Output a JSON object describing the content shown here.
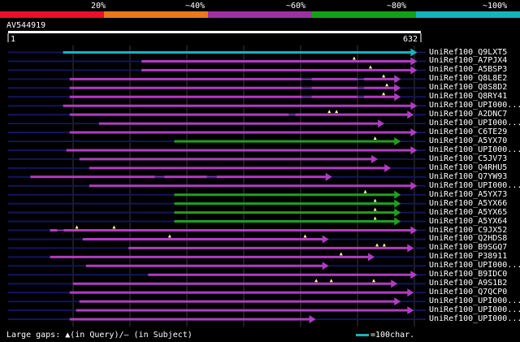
{
  "colors": {
    "scale": [
      "#e8102a",
      "#e8791d",
      "#a02fa4",
      "#13a013",
      "#17b3bc"
    ],
    "bar_pink": "#b03cc4",
    "bar_green": "#1fa01f",
    "bar_cyan": "#17b3bc",
    "backbone": "#14145c",
    "grid": "#3a3a3a",
    "marker": "#ffff99",
    "query_bar": "#ffffff"
  },
  "scale": {
    "labels": [
      "20%",
      "~40%",
      "~60%",
      "~80%",
      "~100%"
    ]
  },
  "query": {
    "id": "AV544919",
    "start_label": "1",
    "end_label": "632",
    "length": 632
  },
  "footer": {
    "legend_text": "Large gaps: ▲(in Query)/— (in Subject)",
    "scale_text": "=100char."
  },
  "hits": [
    {
      "label": "UniRef100_Q9LXT5",
      "start": 85,
      "end": 625,
      "color": "cyan",
      "markers": [],
      "gaps": []
    },
    {
      "label": "UniRef100_A7PJX4",
      "start": 205,
      "end": 625,
      "color": "pink",
      "markers": [
        530
      ],
      "gaps": []
    },
    {
      "label": "UniRef100_A5BSP3",
      "start": 205,
      "end": 625,
      "color": "pink",
      "markers": [
        555
      ],
      "gaps": []
    },
    {
      "label": "UniRef100_Q8L8E2",
      "start": 95,
      "end": 600,
      "color": "pink",
      "markers": [
        575
      ],
      "gaps": [
        [
          450,
          465
        ],
        [
          535,
          545
        ]
      ]
    },
    {
      "label": "UniRef100_Q8S8D2",
      "start": 95,
      "end": 600,
      "color": "pink",
      "markers": [
        580
      ],
      "gaps": [
        [
          450,
          465
        ],
        [
          535,
          545
        ]
      ]
    },
    {
      "label": "UniRef100_Q8RY41",
      "start": 95,
      "end": 600,
      "color": "pink",
      "markers": [
        575
      ],
      "gaps": [
        [
          450,
          465
        ],
        [
          535,
          545
        ]
      ]
    },
    {
      "label": "UniRef100_UPI000...",
      "start": 85,
      "end": 625,
      "color": "pink",
      "markers": [],
      "gaps": []
    },
    {
      "label": "UniRef100_A2DNC7",
      "start": 95,
      "end": 620,
      "color": "pink",
      "markers": [
        492,
        503
      ],
      "gaps": [
        [
          430,
          440
        ]
      ]
    },
    {
      "label": "UniRef100_UPI000...",
      "start": 140,
      "end": 575,
      "color": "pink",
      "markers": [],
      "gaps": []
    },
    {
      "label": "UniRef100_C6TE29",
      "start": 95,
      "end": 625,
      "color": "pink",
      "markers": [],
      "gaps": []
    },
    {
      "label": "UniRef100_A5YX70",
      "start": 255,
      "end": 600,
      "color": "green",
      "markers": [
        562
      ],
      "gaps": []
    },
    {
      "label": "UniRef100_UPI000...",
      "start": 90,
      "end": 625,
      "color": "pink",
      "markers": [],
      "gaps": []
    },
    {
      "label": "UniRef100_C5JV73",
      "start": 110,
      "end": 565,
      "color": "pink",
      "markers": [],
      "gaps": []
    },
    {
      "label": "UniRef100_Q4RHU5",
      "start": 125,
      "end": 585,
      "color": "pink",
      "markers": [],
      "gaps": []
    },
    {
      "label": "UniRef100_Q7YW93",
      "start": 35,
      "end": 495,
      "color": "pink",
      "markers": [],
      "gaps": [
        [
          225,
          240
        ],
        [
          305,
          320
        ]
      ]
    },
    {
      "label": "UniRef100_UPI000...",
      "start": 125,
      "end": 625,
      "color": "pink",
      "markers": [],
      "gaps": []
    },
    {
      "label": "UniRef100_A5YX73",
      "start": 255,
      "end": 600,
      "color": "green",
      "markers": [
        547
      ],
      "gaps": []
    },
    {
      "label": "UniRef100_A5YX66",
      "start": 255,
      "end": 600,
      "color": "green",
      "markers": [
        562
      ],
      "gaps": []
    },
    {
      "label": "UniRef100_A5YX65",
      "start": 255,
      "end": 600,
      "color": "green",
      "markers": [
        562
      ],
      "gaps": []
    },
    {
      "label": "UniRef100_A5YX64",
      "start": 255,
      "end": 600,
      "color": "green",
      "markers": [
        562
      ],
      "gaps": []
    },
    {
      "label": "UniRef100_C9JX52",
      "start": 65,
      "end": 625,
      "color": "pink",
      "markers": [
        106,
        163
      ],
      "gaps": [
        [
          76,
          86
        ]
      ]
    },
    {
      "label": "UniRef100_Q2HDS8",
      "start": 115,
      "end": 490,
      "color": "pink",
      "markers": [
        248,
        455
      ],
      "gaps": []
    },
    {
      "label": "UniRef100_B9SGQ7",
      "start": 185,
      "end": 620,
      "color": "pink",
      "markers": [
        565,
        576
      ],
      "gaps": []
    },
    {
      "label": "UniRef100_P38911",
      "start": 65,
      "end": 560,
      "color": "pink",
      "markers": [
        510
      ],
      "gaps": []
    },
    {
      "label": "UniRef100_UPI000...",
      "start": 120,
      "end": 490,
      "color": "pink",
      "markers": [],
      "gaps": []
    },
    {
      "label": "UniRef100_B9IDC0",
      "start": 215,
      "end": 625,
      "color": "pink",
      "markers": [],
      "gaps": []
    },
    {
      "label": "UniRef100_A9S1B2",
      "start": 100,
      "end": 595,
      "color": "pink",
      "markers": [
        472,
        495,
        560
      ],
      "gaps": []
    },
    {
      "label": "UniRef100_Q7QCP0",
      "start": 95,
      "end": 620,
      "color": "pink",
      "markers": [],
      "gaps": []
    },
    {
      "label": "UniRef100_UPI000...",
      "start": 110,
      "end": 600,
      "color": "pink",
      "markers": [],
      "gaps": []
    },
    {
      "label": "UniRef100_UPI000...",
      "start": 105,
      "end": 620,
      "color": "pink",
      "markers": [],
      "gaps": []
    },
    {
      "label": "UniRef100_UPI000...",
      "start": 95,
      "end": 470,
      "color": "pink",
      "markers": [],
      "gaps": []
    }
  ]
}
